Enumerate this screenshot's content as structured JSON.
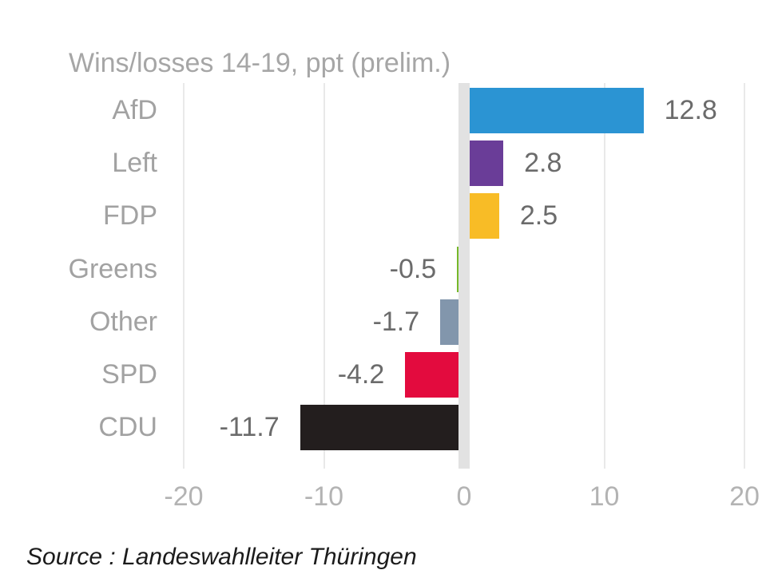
{
  "chart_data": {
    "type": "bar",
    "orientation": "horizontal",
    "title": "Wins/losses 14-19, ppt (prelim.)",
    "categories": [
      "AfD",
      "Left",
      "FDP",
      "Greens",
      "Other",
      "SPD",
      "CDU"
    ],
    "values": [
      12.8,
      2.8,
      2.5,
      -0.5,
      -1.7,
      -4.2,
      -11.7
    ],
    "value_labels": [
      "12.8",
      "2.8",
      "2.5",
      "-0.5",
      "-1.7",
      "-4.2",
      "-11.7"
    ],
    "bar_colors": [
      "#2b94d3",
      "#6a3d98",
      "#f8bc26",
      "#76b82a",
      "#8296ac",
      "#e30b3e",
      "#231e1e"
    ],
    "xlim": [
      -20,
      20
    ],
    "x_ticks": [
      -20,
      -10,
      0,
      10,
      20
    ],
    "x_tick_labels": [
      "-20",
      "-10",
      "0",
      "10",
      "20"
    ],
    "xlabel": "",
    "ylabel": "",
    "grid": "vertical-gridlines-on",
    "legend": "none",
    "zero_axis_color": "#e2e2e2",
    "gridline_color": "#e9e9e9",
    "title_color": "#a6a6a6",
    "category_label_color": "#a2a2a2",
    "value_label_color": "#6b6b6b",
    "tick_label_color": "#b3b3b3",
    "source": "Source : Landeswahlleiter Thüringen"
  }
}
